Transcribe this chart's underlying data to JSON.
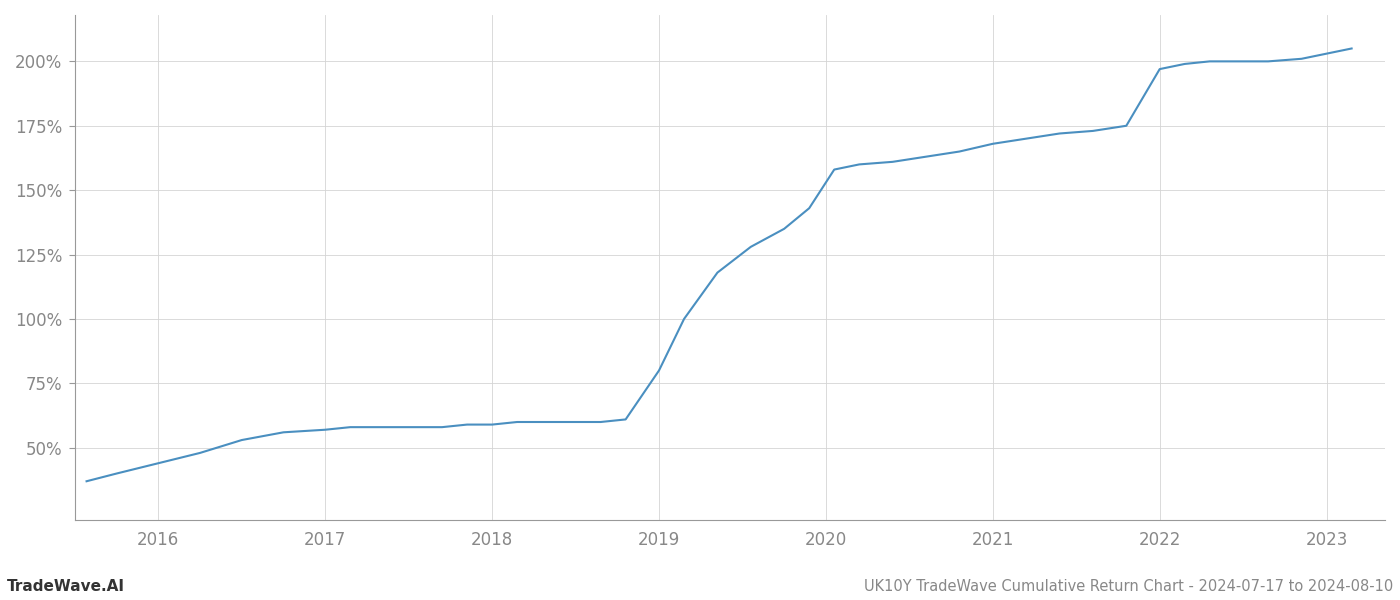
{
  "title": "UK10Y TradeWave Cumulative Return Chart - 2024-07-17 to 2024-08-10",
  "watermark": "TradeWave.AI",
  "x_values": [
    2015.57,
    2015.75,
    2016.0,
    2016.25,
    2016.5,
    2016.75,
    2017.0,
    2017.15,
    2017.3,
    2017.5,
    2017.7,
    2017.85,
    2018.0,
    2018.15,
    2018.3,
    2018.5,
    2018.65,
    2018.8,
    2019.0,
    2019.15,
    2019.35,
    2019.55,
    2019.75,
    2019.9,
    2020.05,
    2020.2,
    2020.4,
    2020.6,
    2020.8,
    2021.0,
    2021.2,
    2021.4,
    2021.6,
    2021.8,
    2022.0,
    2022.15,
    2022.3,
    2022.5,
    2022.65,
    2022.85,
    2023.0,
    2023.15
  ],
  "y_values": [
    37,
    40,
    44,
    48,
    53,
    56,
    57,
    58,
    58,
    58,
    58,
    59,
    59,
    60,
    60,
    60,
    60,
    61,
    80,
    100,
    118,
    128,
    135,
    143,
    158,
    160,
    161,
    163,
    165,
    168,
    170,
    172,
    173,
    175,
    197,
    199,
    200,
    200,
    200,
    201,
    203,
    205
  ],
  "line_color": "#4a8fc0",
  "line_width": 1.5,
  "background_color": "#ffffff",
  "grid_color": "#d5d5d5",
  "ytick_labels": [
    "50%",
    "75%",
    "100%",
    "125%",
    "150%",
    "175%",
    "200%"
  ],
  "ytick_values": [
    50,
    75,
    100,
    125,
    150,
    175,
    200
  ],
  "xlim": [
    2015.5,
    2023.35
  ],
  "ylim": [
    22,
    218
  ],
  "xtick_values": [
    2016,
    2017,
    2018,
    2019,
    2020,
    2021,
    2022,
    2023
  ],
  "xtick_labels": [
    "2016",
    "2017",
    "2018",
    "2019",
    "2020",
    "2021",
    "2022",
    "2023"
  ],
  "title_fontsize": 10.5,
  "watermark_fontsize": 11,
  "tick_label_color": "#888888",
  "spine_color": "#999999"
}
